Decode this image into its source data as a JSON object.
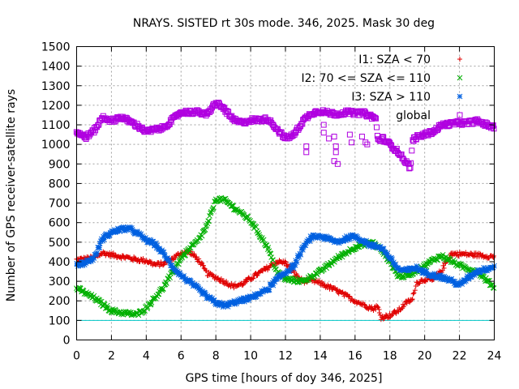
{
  "chart_data": {
    "type": "scatter",
    "title": "NRAYS. SISTED rt 30s mode. 346, 2025. Mask 30 deg",
    "xlabel": "GPS time [hours of doy 346, 2025]",
    "ylabel": "Number of GPS receiver-satellite rays",
    "xlim": [
      0,
      24
    ],
    "ylim": [
      0,
      1500
    ],
    "x_ticks": [
      0,
      2,
      4,
      6,
      8,
      10,
      12,
      14,
      16,
      18,
      20,
      22,
      24
    ],
    "y_ticks": [
      0,
      100,
      200,
      300,
      400,
      500,
      600,
      700,
      800,
      900,
      1000,
      1100,
      1200,
      1300,
      1400,
      1500
    ],
    "grid": true,
    "legend_position": "top-right",
    "reference_line": {
      "y": 100,
      "color": "#00c8c8"
    },
    "series": [
      {
        "name": "I1: SZA < 70",
        "marker": "plus",
        "color": "#e00000",
        "keypoints": [
          [
            0,
            410
          ],
          [
            0.5,
            415
          ],
          [
            1,
            420
          ],
          [
            1.5,
            445
          ],
          [
            2,
            435
          ],
          [
            3,
            420
          ],
          [
            3.5,
            410
          ],
          [
            4,
            405
          ],
          [
            4.5,
            385
          ],
          [
            5,
            390
          ],
          [
            5.5,
            415
          ],
          [
            6,
            445
          ],
          [
            6.5,
            450
          ],
          [
            7,
            410
          ],
          [
            7.5,
            340
          ],
          [
            8,
            320
          ],
          [
            9,
            275
          ],
          [
            9.5,
            285
          ],
          [
            10,
            315
          ],
          [
            11,
            370
          ],
          [
            11.5,
            400
          ],
          [
            12,
            395
          ],
          [
            12.5,
            340
          ],
          [
            13,
            300
          ],
          [
            13.5,
            305
          ],
          [
            14,
            290
          ],
          [
            15,
            250
          ],
          [
            16,
            200
          ],
          [
            17,
            160
          ],
          [
            17.3,
            170
          ],
          [
            17.5,
            115
          ],
          [
            18,
            125
          ],
          [
            18.5,
            150
          ],
          [
            19,
            195
          ],
          [
            19.3,
            205
          ],
          [
            19.5,
            290
          ],
          [
            20,
            310
          ],
          [
            20.5,
            305
          ],
          [
            21,
            360
          ],
          [
            21.5,
            440
          ],
          [
            22,
            440
          ],
          [
            23,
            435
          ],
          [
            24,
            425
          ]
        ]
      },
      {
        "name": "I2: 70 <= SZA <= 110",
        "marker": "cross",
        "color": "#00b000",
        "keypoints": [
          [
            0,
            265
          ],
          [
            1,
            215
          ],
          [
            2,
            150
          ],
          [
            2.5,
            140
          ],
          [
            3,
            135
          ],
          [
            3.5,
            130
          ],
          [
            4,
            165
          ],
          [
            5,
            270
          ],
          [
            6,
            420
          ],
          [
            7,
            510
          ],
          [
            7.5,
            585
          ],
          [
            8,
            720
          ],
          [
            8.5,
            715
          ],
          [
            9,
            680
          ],
          [
            10,
            610
          ],
          [
            11,
            470
          ],
          [
            11.5,
            350
          ],
          [
            12,
            310
          ],
          [
            12.5,
            305
          ],
          [
            13,
            300
          ],
          [
            14,
            350
          ],
          [
            15,
            420
          ],
          [
            16,
            475
          ],
          [
            17,
            500
          ],
          [
            17.5,
            460
          ],
          [
            18,
            400
          ],
          [
            18.5,
            325
          ],
          [
            19,
            330
          ],
          [
            20,
            380
          ],
          [
            20.5,
            410
          ],
          [
            21,
            430
          ],
          [
            22,
            380
          ],
          [
            23,
            350
          ],
          [
            24,
            270
          ]
        ]
      },
      {
        "name": "I3: SZA > 110",
        "marker": "star",
        "color": "#0060e0",
        "keypoints": [
          [
            0,
            385
          ],
          [
            0.5,
            395
          ],
          [
            1,
            420
          ],
          [
            1.5,
            520
          ],
          [
            2,
            550
          ],
          [
            2.5,
            565
          ],
          [
            3,
            570
          ],
          [
            3.5,
            545
          ],
          [
            4,
            510
          ],
          [
            4.5,
            490
          ],
          [
            5,
            440
          ],
          [
            5.5,
            375
          ],
          [
            6,
            330
          ],
          [
            7,
            260
          ],
          [
            7.5,
            220
          ],
          [
            8,
            190
          ],
          [
            8.5,
            175
          ],
          [
            9,
            190
          ],
          [
            10,
            215
          ],
          [
            11,
            260
          ],
          [
            11.5,
            310
          ],
          [
            12,
            345
          ],
          [
            12.5,
            380
          ],
          [
            13,
            470
          ],
          [
            13.5,
            525
          ],
          [
            14,
            530
          ],
          [
            15,
            500
          ],
          [
            15.5,
            520
          ],
          [
            16,
            530
          ],
          [
            17,
            480
          ],
          [
            17.5,
            475
          ],
          [
            18,
            420
          ],
          [
            18.5,
            360
          ],
          [
            19,
            355
          ],
          [
            19.5,
            370
          ],
          [
            20,
            345
          ],
          [
            21,
            320
          ],
          [
            21.5,
            305
          ],
          [
            22,
            280
          ],
          [
            22.5,
            320
          ],
          [
            23,
            350
          ],
          [
            24,
            375
          ]
        ]
      },
      {
        "name": "global",
        "marker": "square",
        "color": "#b000e0",
        "keypoints": [
          [
            0,
            1065
          ],
          [
            0.5,
            1035
          ],
          [
            1,
            1070
          ],
          [
            1.5,
            1140
          ],
          [
            2,
            1120
          ],
          [
            2.5,
            1140
          ],
          [
            3,
            1120
          ],
          [
            3.5,
            1095
          ],
          [
            4,
            1065
          ],
          [
            4.5,
            1075
          ],
          [
            5,
            1085
          ],
          [
            5.5,
            1125
          ],
          [
            6,
            1165
          ],
          [
            7,
            1165
          ],
          [
            7.5,
            1150
          ],
          [
            8,
            1215
          ],
          [
            8.5,
            1180
          ],
          [
            9,
            1125
          ],
          [
            9.5,
            1110
          ],
          [
            10,
            1125
          ],
          [
            10.5,
            1125
          ],
          [
            11,
            1130
          ],
          [
            11.5,
            1080
          ],
          [
            12,
            1030
          ],
          [
            12.5,
            1050
          ],
          [
            13,
            1120
          ],
          [
            13.5,
            1160
          ],
          [
            14,
            1170
          ],
          [
            14.5,
            1160
          ],
          [
            15,
            1155
          ],
          [
            15.5,
            1165
          ],
          [
            16,
            1160
          ],
          [
            16.5,
            1160
          ],
          [
            17,
            1140
          ],
          [
            17.2,
            1130
          ],
          [
            17.3,
            1020
          ],
          [
            17.6,
            1030
          ],
          [
            18,
            1000
          ],
          [
            18.5,
            960
          ],
          [
            19,
            900
          ],
          [
            19.2,
            880
          ],
          [
            19.3,
            1020
          ],
          [
            19.5,
            1035
          ],
          [
            20,
            1050
          ],
          [
            20.5,
            1065
          ],
          [
            21,
            1100
          ],
          [
            22,
            1110
          ],
          [
            22.5,
            1110
          ],
          [
            23,
            1120
          ],
          [
            24,
            1085
          ]
        ],
        "outliers": [
          [
            13.2,
            990
          ],
          [
            13.2,
            960
          ],
          [
            14.2,
            1100
          ],
          [
            14.2,
            1060
          ],
          [
            14.5,
            1030
          ],
          [
            14.8,
            1040
          ],
          [
            14.9,
            990
          ],
          [
            14.9,
            960
          ],
          [
            14.8,
            915
          ],
          [
            15.0,
            900
          ],
          [
            15.7,
            1050
          ],
          [
            15.8,
            1010
          ],
          [
            16.4,
            1040
          ],
          [
            16.6,
            1010
          ],
          [
            16.7,
            1000
          ]
        ]
      }
    ]
  }
}
